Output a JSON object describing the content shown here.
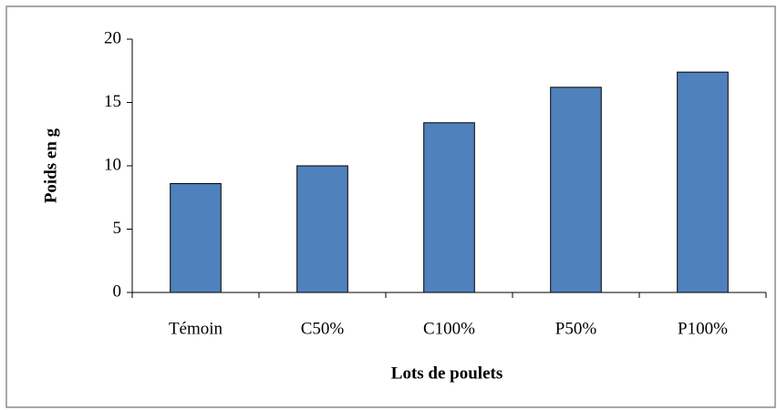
{
  "chart_data": {
    "type": "bar",
    "x_label": "Lots de poulets",
    "y_label": "Poids en g",
    "categories": [
      "Témoin",
      "C50%",
      "C100%",
      "P50%",
      "P100%"
    ],
    "values": [
      8.6,
      10.0,
      13.4,
      16.2,
      17.4
    ],
    "color": "#4f81bd",
    "ylim": [
      0,
      20
    ],
    "yticks": [
      0,
      5,
      10,
      15,
      20
    ],
    "grid": false
  }
}
